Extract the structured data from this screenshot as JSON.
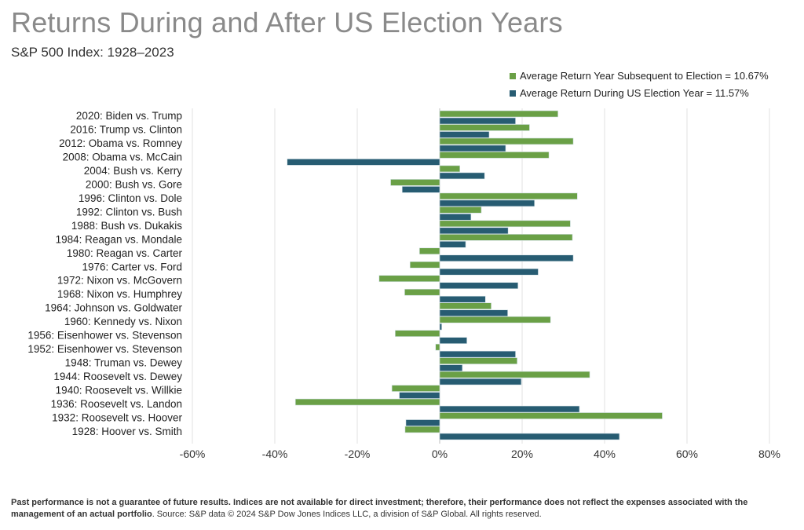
{
  "title": "Returns During and After US Election Years",
  "subtitle": "S&P 500 Index: 1928–2023",
  "footer": {
    "disclaimer_bold": "Past performance is not a guarantee of future results. Indices are not available for direct investment; therefore, their performance does not reflect the expenses associated with the management of an actual portfolio",
    "source": ". Source: S&P data © 2024 S&P Dow Jones Indices LLC, a division of S&P Global. All rights reserved."
  },
  "chart_data": {
    "type": "bar",
    "orientation": "horizontal",
    "title": "Returns During and After US Election Years",
    "xlim": [
      -60,
      80
    ],
    "xticks": [
      -60,
      -40,
      -20,
      0,
      20,
      40,
      60,
      80
    ],
    "xtick_labels": [
      "-60%",
      "-40%",
      "-20%",
      "0%",
      "20%",
      "40%",
      "60%",
      "80%"
    ],
    "grid": true,
    "legend_position": "top-right",
    "categories": [
      "2020: Biden vs. Trump",
      "2016: Trump vs. Clinton",
      "2012: Obama vs. Romney ",
      "2008: Obama vs. McCain",
      "2004: Bush vs. Kerry",
      "2000: Bush vs. Gore",
      "1996: Clinton vs. Dole",
      "1992: Clinton vs. Bush",
      "1988: Bush vs. Dukakis",
      "1984: Reagan vs. Mondale",
      "1980: Reagan vs. Carter",
      "1976: Carter vs. Ford",
      "1972: Nixon vs. McGovern",
      "1968: Nixon vs. Humphrey",
      "1964: Johnson vs. Goldwater",
      "1960: Kennedy vs. Nixon",
      "1956: Eisenhower vs. Stevenson",
      "1952: Eisenhower vs. Stevenson",
      "1948: Truman vs. Dewey",
      "1944: Roosevelt vs. Dewey",
      "1940: Roosevelt vs. Willkie",
      "1936: Roosevelt vs. Landon",
      "1932: Roosevelt vs. Hoover",
      "1928: Hoover vs. Smith"
    ],
    "series": [
      {
        "name": "Average Return Year Subsequent to Election = 10.67%",
        "color": "#6aa046",
        "values": [
          28.7,
          21.8,
          32.4,
          26.5,
          4.9,
          -11.9,
          33.4,
          10.1,
          31.7,
          32.2,
          -4.9,
          -7.2,
          -14.7,
          -8.5,
          12.5,
          26.9,
          -10.8,
          -1.0,
          18.8,
          36.4,
          -11.6,
          -35.0,
          54.0,
          -8.4
        ]
      },
      {
        "name": "Average Return During US Election Year = 11.57%",
        "color": "#275c72",
        "values": [
          18.4,
          12.0,
          16.0,
          -37.0,
          10.9,
          -9.1,
          23.0,
          7.6,
          16.6,
          6.3,
          32.4,
          23.9,
          19.0,
          11.1,
          16.5,
          0.5,
          6.6,
          18.4,
          5.5,
          19.8,
          -9.8,
          33.9,
          -8.2,
          43.6
        ]
      }
    ]
  }
}
